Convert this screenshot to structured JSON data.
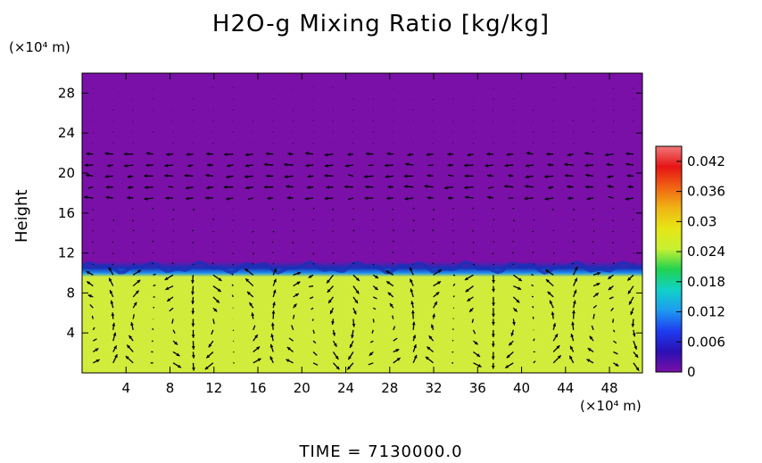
{
  "chart_data": {
    "type": "heatmap",
    "title": "H2O-g Mixing Ratio [kg/kg]",
    "ylabel": "Height",
    "y_unit": "(×10⁴ m)",
    "x_unit": "(×10⁴ m)",
    "footer": "TIME  =  7130000.0",
    "xlim": [
      0,
      51
    ],
    "ylim": [
      0,
      30
    ],
    "x_ticks": [
      "4",
      "8",
      "12",
      "16",
      "20",
      "24",
      "28",
      "32",
      "36",
      "40",
      "44",
      "48"
    ],
    "x_tick_values": [
      4,
      8,
      12,
      16,
      20,
      24,
      28,
      32,
      36,
      40,
      44,
      48
    ],
    "y_ticks": [
      "4",
      "8",
      "12",
      "16",
      "20",
      "24",
      "28"
    ],
    "y_tick_values": [
      4,
      8,
      12,
      16,
      20,
      24,
      28
    ],
    "colorbar": {
      "range": [
        0,
        0.045
      ],
      "ticks": [
        "0",
        "0.006",
        "0.012",
        "0.018",
        "0.024",
        "0.03",
        "0.036",
        "0.042"
      ],
      "tick_values": [
        0,
        0.006,
        0.012,
        0.018,
        0.024,
        0.03,
        0.036,
        0.042
      ],
      "colors": [
        "#7a0fa6",
        "#2a10b4",
        "#1e3cf0",
        "#1e9bf0",
        "#10d2c8",
        "#20d250",
        "#c8f032",
        "#e6e614",
        "#f0b414",
        "#f06414",
        "#e61414",
        "#f07878"
      ]
    },
    "fields": {
      "upper_value": 0.0,
      "lower_value": 0.028,
      "interface_height": 10
    },
    "colors": {
      "upper": "#7a10a8",
      "lower": "#d2ec3c",
      "interface": "#1a30b8",
      "arrow": "#000000"
    }
  }
}
